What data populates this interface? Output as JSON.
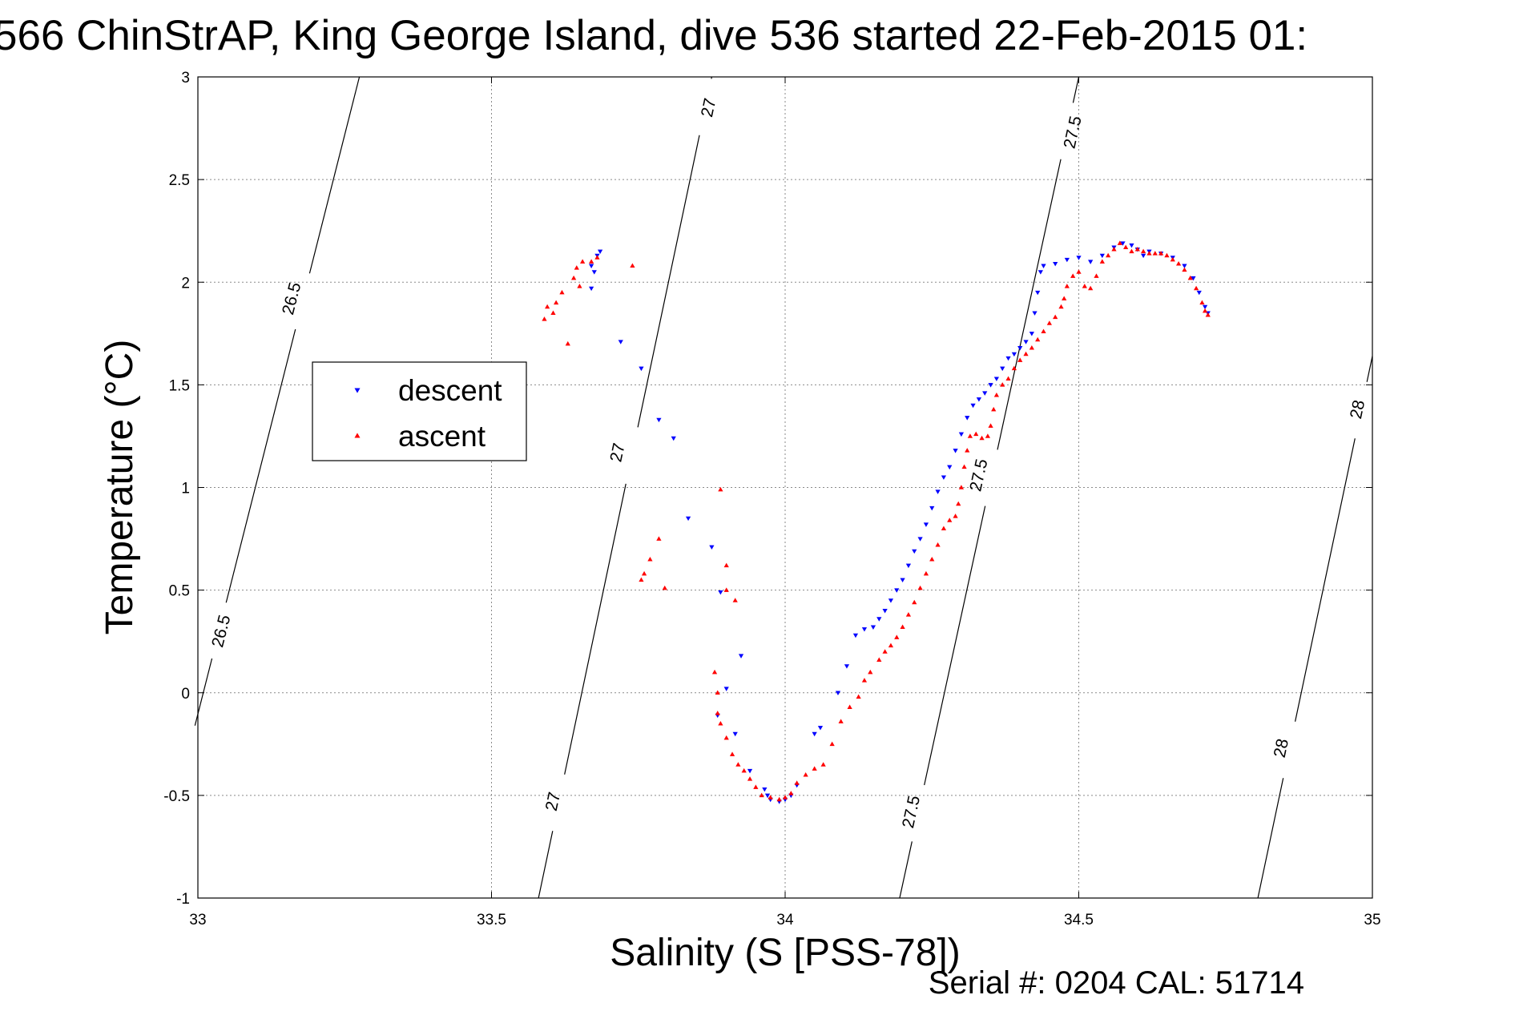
{
  "chart_data": {
    "type": "scatter",
    "title": "566 ChinStrAP, King George Island, dive 536 started 22-Feb-2015 01:",
    "xlabel": "Salinity (S [PSS-78])",
    "ylabel": "Temperature (°C)",
    "xlim": [
      33,
      35
    ],
    "ylim": [
      -1,
      3
    ],
    "xticks": [
      "33",
      "33.5",
      "34",
      "34.5",
      "35"
    ],
    "yticks": [
      "-1",
      "-0.5",
      "0",
      "0.5",
      "1",
      "1.5",
      "2",
      "2.5",
      "3"
    ],
    "grid": true,
    "footer": "Serial #: 0204  CAL: 51714",
    "legend": {
      "placement": "left",
      "entries": [
        {
          "label": "descent",
          "color": "#0000ff",
          "marker": "triangle-down"
        },
        {
          "label": "ascent",
          "color": "#ff0000",
          "marker": "triangle-up"
        }
      ]
    },
    "contours": [
      {
        "level": "26.5",
        "points": [
          [
            32.995,
            -0.16
          ],
          [
            33.275,
            3.0
          ]
        ],
        "labels": [
          [
            33.04,
            0.3
          ],
          [
            33.16,
            1.92
          ]
        ]
      },
      {
        "level": "27",
        "points": [
          [
            33.58,
            -1.0
          ],
          [
            33.875,
            3.0
          ]
        ],
        "labels": [
          [
            33.605,
            -0.53
          ],
          [
            33.715,
            1.17
          ],
          [
            33.87,
            2.85
          ]
        ]
      },
      {
        "level": "27.5",
        "points": [
          [
            34.195,
            -1.0
          ],
          [
            34.5,
            3.0
          ]
        ],
        "labels": [
          [
            34.215,
            -0.58
          ],
          [
            34.33,
            1.06
          ],
          [
            34.49,
            2.73
          ]
        ]
      },
      {
        "level": "28",
        "points": [
          [
            34.805,
            -1.0
          ],
          [
            35.0,
            1.64
          ]
        ],
        "labels": [
          [
            34.845,
            -0.27
          ],
          [
            34.975,
            1.38
          ]
        ]
      }
    ],
    "series": [
      {
        "name": "descent",
        "color": "#0000ff",
        "points": [
          [
            33.685,
            2.15
          ],
          [
            33.68,
            2.13
          ],
          [
            33.67,
            2.08
          ],
          [
            33.675,
            2.05
          ],
          [
            33.67,
            1.97
          ],
          [
            33.72,
            1.71
          ],
          [
            33.755,
            1.58
          ],
          [
            33.785,
            1.33
          ],
          [
            33.81,
            1.24
          ],
          [
            33.835,
            0.85
          ],
          [
            33.875,
            0.71
          ],
          [
            33.89,
            0.49
          ],
          [
            33.925,
            0.18
          ],
          [
            33.9,
            0.02
          ],
          [
            33.885,
            -0.11
          ],
          [
            33.915,
            -0.2
          ],
          [
            33.94,
            -0.38
          ],
          [
            33.965,
            -0.47
          ],
          [
            33.97,
            -0.5
          ],
          [
            33.975,
            -0.52
          ],
          [
            33.99,
            -0.53
          ],
          [
            34.0,
            -0.52
          ],
          [
            34.01,
            -0.5
          ],
          [
            34.02,
            -0.45
          ],
          [
            34.05,
            -0.2
          ],
          [
            34.06,
            -0.17
          ],
          [
            34.09,
            0.0
          ],
          [
            34.105,
            0.13
          ],
          [
            34.12,
            0.28
          ],
          [
            34.135,
            0.31
          ],
          [
            34.15,
            0.32
          ],
          [
            34.16,
            0.36
          ],
          [
            34.17,
            0.4
          ],
          [
            34.18,
            0.45
          ],
          [
            34.19,
            0.5
          ],
          [
            34.2,
            0.55
          ],
          [
            34.21,
            0.62
          ],
          [
            34.22,
            0.69
          ],
          [
            34.23,
            0.75
          ],
          [
            34.24,
            0.82
          ],
          [
            34.25,
            0.9
          ],
          [
            34.26,
            0.98
          ],
          [
            34.27,
            1.05
          ],
          [
            34.28,
            1.1
          ],
          [
            34.29,
            1.18
          ],
          [
            34.3,
            1.26
          ],
          [
            34.31,
            1.34
          ],
          [
            34.32,
            1.4
          ],
          [
            34.33,
            1.43
          ],
          [
            34.34,
            1.46
          ],
          [
            34.35,
            1.5
          ],
          [
            34.36,
            1.53
          ],
          [
            34.37,
            1.58
          ],
          [
            34.38,
            1.63
          ],
          [
            34.39,
            1.65
          ],
          [
            34.4,
            1.68
          ],
          [
            34.41,
            1.71
          ],
          [
            34.42,
            1.75
          ],
          [
            34.425,
            1.85
          ],
          [
            34.43,
            1.95
          ],
          [
            34.435,
            2.05
          ],
          [
            34.44,
            2.08
          ],
          [
            34.46,
            2.09
          ],
          [
            34.48,
            2.11
          ],
          [
            34.5,
            2.12
          ],
          [
            34.52,
            2.1
          ],
          [
            34.54,
            2.13
          ],
          [
            34.56,
            2.17
          ],
          [
            34.575,
            2.19
          ],
          [
            34.59,
            2.18
          ],
          [
            34.6,
            2.16
          ],
          [
            34.61,
            2.13
          ],
          [
            34.62,
            2.15
          ],
          [
            34.64,
            2.14
          ],
          [
            34.66,
            2.12
          ],
          [
            34.68,
            2.08
          ],
          [
            34.695,
            2.02
          ],
          [
            34.705,
            1.95
          ],
          [
            34.715,
            1.88
          ],
          [
            34.72,
            1.85
          ]
        ]
      },
      {
        "name": "ascent",
        "color": "#ff0000",
        "points": [
          [
            33.68,
            2.12
          ],
          [
            33.67,
            2.1
          ],
          [
            33.655,
            2.1
          ],
          [
            33.645,
            2.07
          ],
          [
            33.64,
            2.02
          ],
          [
            33.65,
            1.98
          ],
          [
            33.62,
            1.95
          ],
          [
            33.61,
            1.9
          ],
          [
            33.605,
            1.85
          ],
          [
            33.595,
            1.88
          ],
          [
            33.59,
            1.82
          ],
          [
            33.63,
            1.7
          ],
          [
            33.74,
            2.08
          ],
          [
            33.785,
            0.75
          ],
          [
            33.77,
            0.65
          ],
          [
            33.76,
            0.58
          ],
          [
            33.755,
            0.55
          ],
          [
            33.795,
            0.51
          ],
          [
            33.89,
            0.99
          ],
          [
            33.9,
            0.5
          ],
          [
            33.9,
            0.62
          ],
          [
            33.915,
            0.45
          ],
          [
            33.88,
            0.1
          ],
          [
            33.885,
            0.0
          ],
          [
            33.885,
            -0.1
          ],
          [
            33.89,
            -0.15
          ],
          [
            33.9,
            -0.22
          ],
          [
            33.91,
            -0.3
          ],
          [
            33.92,
            -0.35
          ],
          [
            33.93,
            -0.38
          ],
          [
            33.94,
            -0.42
          ],
          [
            33.95,
            -0.46
          ],
          [
            33.96,
            -0.5
          ],
          [
            33.975,
            -0.51
          ],
          [
            33.99,
            -0.52
          ],
          [
            34.0,
            -0.51
          ],
          [
            34.01,
            -0.49
          ],
          [
            34.02,
            -0.44
          ],
          [
            34.035,
            -0.4
          ],
          [
            34.05,
            -0.37
          ],
          [
            34.065,
            -0.35
          ],
          [
            34.08,
            -0.25
          ],
          [
            34.095,
            -0.14
          ],
          [
            34.11,
            -0.07
          ],
          [
            34.125,
            -0.02
          ],
          [
            34.135,
            0.06
          ],
          [
            34.145,
            0.1
          ],
          [
            34.16,
            0.16
          ],
          [
            34.17,
            0.2
          ],
          [
            34.18,
            0.23
          ],
          [
            34.19,
            0.27
          ],
          [
            34.2,
            0.32
          ],
          [
            34.21,
            0.38
          ],
          [
            34.22,
            0.44
          ],
          [
            34.23,
            0.51
          ],
          [
            34.24,
            0.58
          ],
          [
            34.25,
            0.65
          ],
          [
            34.26,
            0.72
          ],
          [
            34.27,
            0.8
          ],
          [
            34.28,
            0.84
          ],
          [
            34.29,
            0.86
          ],
          [
            34.295,
            0.92
          ],
          [
            34.3,
            1.0
          ],
          [
            34.305,
            1.1
          ],
          [
            34.31,
            1.18
          ],
          [
            34.315,
            1.25
          ],
          [
            34.325,
            1.26
          ],
          [
            34.335,
            1.24
          ],
          [
            34.345,
            1.25
          ],
          [
            34.35,
            1.3
          ],
          [
            34.355,
            1.38
          ],
          [
            34.36,
            1.45
          ],
          [
            34.37,
            1.5
          ],
          [
            34.38,
            1.53
          ],
          [
            34.39,
            1.58
          ],
          [
            34.4,
            1.62
          ],
          [
            34.41,
            1.65
          ],
          [
            34.42,
            1.68
          ],
          [
            34.43,
            1.72
          ],
          [
            34.44,
            1.76
          ],
          [
            34.45,
            1.8
          ],
          [
            34.46,
            1.83
          ],
          [
            34.47,
            1.88
          ],
          [
            34.475,
            1.92
          ],
          [
            34.48,
            1.98
          ],
          [
            34.49,
            2.03
          ],
          [
            34.5,
            2.05
          ],
          [
            34.51,
            1.98
          ],
          [
            34.52,
            1.97
          ],
          [
            34.53,
            2.03
          ],
          [
            34.54,
            2.1
          ],
          [
            34.55,
            2.13
          ],
          [
            34.56,
            2.16
          ],
          [
            34.57,
            2.19
          ],
          [
            34.58,
            2.17
          ],
          [
            34.59,
            2.15
          ],
          [
            34.6,
            2.16
          ],
          [
            34.61,
            2.15
          ],
          [
            34.62,
            2.14
          ],
          [
            34.63,
            2.14
          ],
          [
            34.64,
            2.14
          ],
          [
            34.65,
            2.13
          ],
          [
            34.66,
            2.11
          ],
          [
            34.67,
            2.09
          ],
          [
            34.68,
            2.06
          ],
          [
            34.69,
            2.02
          ],
          [
            34.7,
            1.97
          ],
          [
            34.71,
            1.9
          ],
          [
            34.715,
            1.86
          ],
          [
            34.72,
            1.84
          ]
        ]
      }
    ]
  }
}
